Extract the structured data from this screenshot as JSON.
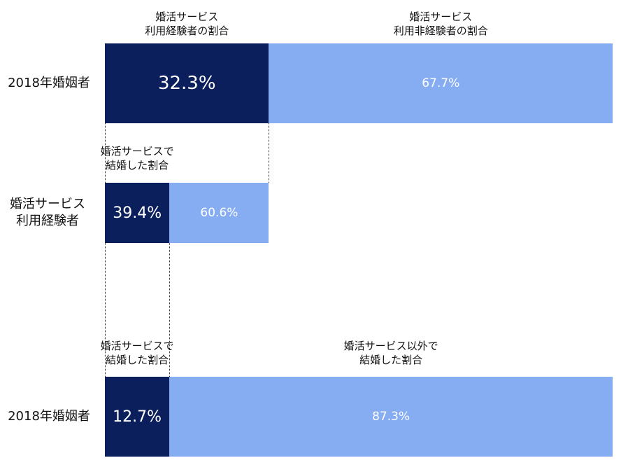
{
  "chart_data": [
    {
      "type": "bar",
      "orientation": "horizontal-stacked",
      "row_label": "2018年婚姻者",
      "segments": [
        {
          "caption": "婚活サービス\n利用経験者の割合",
          "value": 32.3,
          "label": "32.3%",
          "color": "#0a1f5c"
        },
        {
          "caption": "婚活サービス\n利用非経験者の割合",
          "value": 67.7,
          "label": "67.7%",
          "color": "#86acf2"
        }
      ]
    },
    {
      "type": "bar",
      "orientation": "horizontal-stacked",
      "row_label": "婚活サービス\n利用経験者",
      "parent_fraction": 32.3,
      "segments": [
        {
          "caption": "婚活サービスで\n結婚した割合",
          "value": 39.4,
          "label": "39.4%",
          "color": "#0a1f5c"
        },
        {
          "caption": "",
          "value": 60.6,
          "label": "60.6%",
          "color": "#86acf2"
        }
      ]
    },
    {
      "type": "bar",
      "orientation": "horizontal-stacked",
      "row_label": "2018年婚姻者",
      "segments": [
        {
          "caption": "婚活サービスで\n結婚した割合",
          "value": 12.7,
          "label": "12.7%",
          "color": "#0a1f5c"
        },
        {
          "caption": "婚活サービス以外で\n結婚した割合",
          "value": 87.3,
          "label": "87.3%",
          "color": "#86acf2"
        }
      ]
    }
  ]
}
